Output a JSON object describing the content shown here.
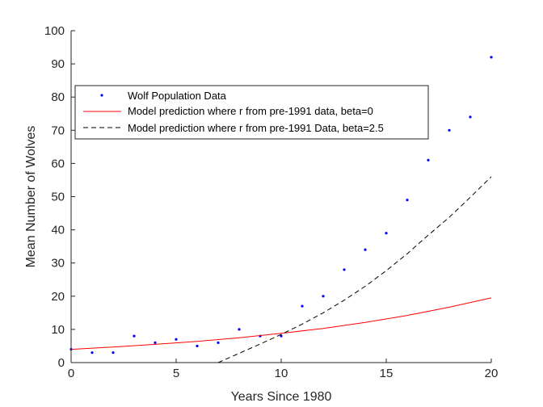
{
  "chart_data": {
    "type": "line",
    "title": "",
    "xlabel": "Years Since 1980",
    "ylabel": "Mean Number of Wolves",
    "xlim": [
      0,
      20
    ],
    "ylim": [
      0,
      100
    ],
    "xticks": [
      0,
      5,
      10,
      15,
      20
    ],
    "yticks": [
      0,
      10,
      20,
      30,
      40,
      50,
      60,
      70,
      80,
      90,
      100
    ],
    "grid": false,
    "legend_position": "top-left",
    "series": [
      {
        "name": "Wolf Population Data",
        "kind": "scatter",
        "color": "#0000ff",
        "x": [
          0,
          1,
          2,
          3,
          4,
          5,
          6,
          7,
          8,
          9,
          10,
          11,
          12,
          13,
          14,
          15,
          16,
          17,
          18,
          19,
          20
        ],
        "y": [
          4,
          3,
          3,
          8,
          6,
          7,
          5,
          6,
          10,
          8,
          8,
          17,
          20,
          28,
          34,
          39,
          49,
          61,
          70,
          74,
          92
        ]
      },
      {
        "name": "Model prediction where r from pre-1991 data, beta=0",
        "kind": "line",
        "color": "#ff0000",
        "dash": "solid",
        "x": [
          0,
          2,
          4,
          6,
          8,
          10,
          12,
          14,
          16,
          18,
          20
        ],
        "y": [
          4.0,
          4.7,
          5.5,
          6.4,
          7.5,
          8.8,
          10.3,
          12.1,
          14.2,
          16.7,
          19.5
        ]
      },
      {
        "name": "Model prediction where r from pre-1991 Data, beta=2.5",
        "kind": "line",
        "color": "#000000",
        "dash": "dashed",
        "x": [
          7,
          8,
          9,
          10,
          11,
          12,
          13,
          14,
          15,
          16,
          17,
          18,
          19,
          20
        ],
        "y": [
          0,
          2.8,
          5.6,
          8.5,
          11.6,
          15.0,
          18.8,
          23.0,
          27.7,
          32.8,
          38.4,
          43.8,
          49.8,
          56.0
        ]
      }
    ]
  }
}
